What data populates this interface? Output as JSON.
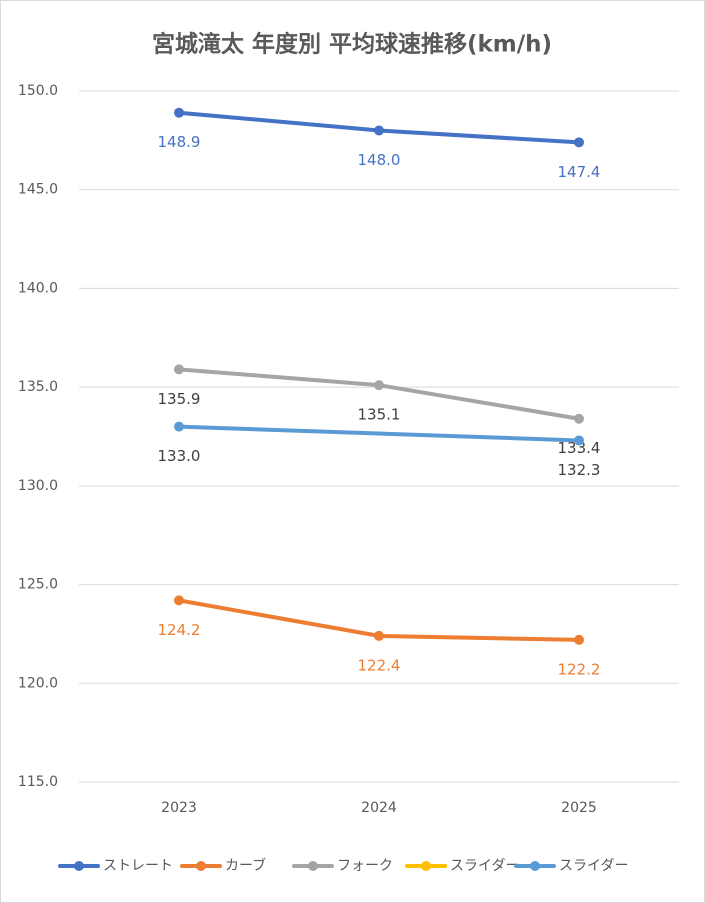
{
  "chart_data": {
    "type": "line",
    "title": "宮城滝太 年度別 平均球速推移(km/h)",
    "categories": [
      "2023",
      "2024",
      "2025"
    ],
    "series": [
      {
        "name": "ストレート",
        "color": "#4472c4",
        "label_color": "#4472c4",
        "values": [
          148.9,
          148.0,
          147.4
        ],
        "value_labels": [
          "148.9",
          "148.0",
          "147.4"
        ]
      },
      {
        "name": "カーブ",
        "color": "#ed7d31",
        "label_color": "#ed7d31",
        "values": [
          124.2,
          122.4,
          122.2
        ],
        "value_labels": [
          "124.2",
          "122.4",
          "122.2"
        ]
      },
      {
        "name": "フォーク",
        "color": "#a5a5a5",
        "label_color": "#404040",
        "values": [
          135.9,
          135.1,
          133.4
        ],
        "value_labels": [
          "135.9",
          "135.1",
          "133.4"
        ]
      },
      {
        "name": "スライダー",
        "color": "#ffc000",
        "label_color": "#404040",
        "values": [
          null,
          null,
          null
        ],
        "value_labels": [
          null,
          null,
          null
        ]
      },
      {
        "name": "スライダー",
        "color": "#5b9bd5",
        "label_color": "#404040",
        "values": [
          133.0,
          null,
          132.3
        ],
        "value_labels": [
          "133.0",
          null,
          "132.3"
        ]
      }
    ],
    "span_gaps": true,
    "ylim": [
      115,
      150
    ],
    "yticks": [
      {
        "value": 115,
        "label": "115.0"
      },
      {
        "value": 120,
        "label": "120.0"
      },
      {
        "value": 125,
        "label": "125.0"
      },
      {
        "value": 130,
        "label": "130.0"
      },
      {
        "value": 135,
        "label": "135.0"
      },
      {
        "value": 140,
        "label": "140.0"
      },
      {
        "value": 145,
        "label": "145.0"
      },
      {
        "value": 150,
        "label": "150.0"
      }
    ],
    "grid": true,
    "legend": "bottom"
  }
}
